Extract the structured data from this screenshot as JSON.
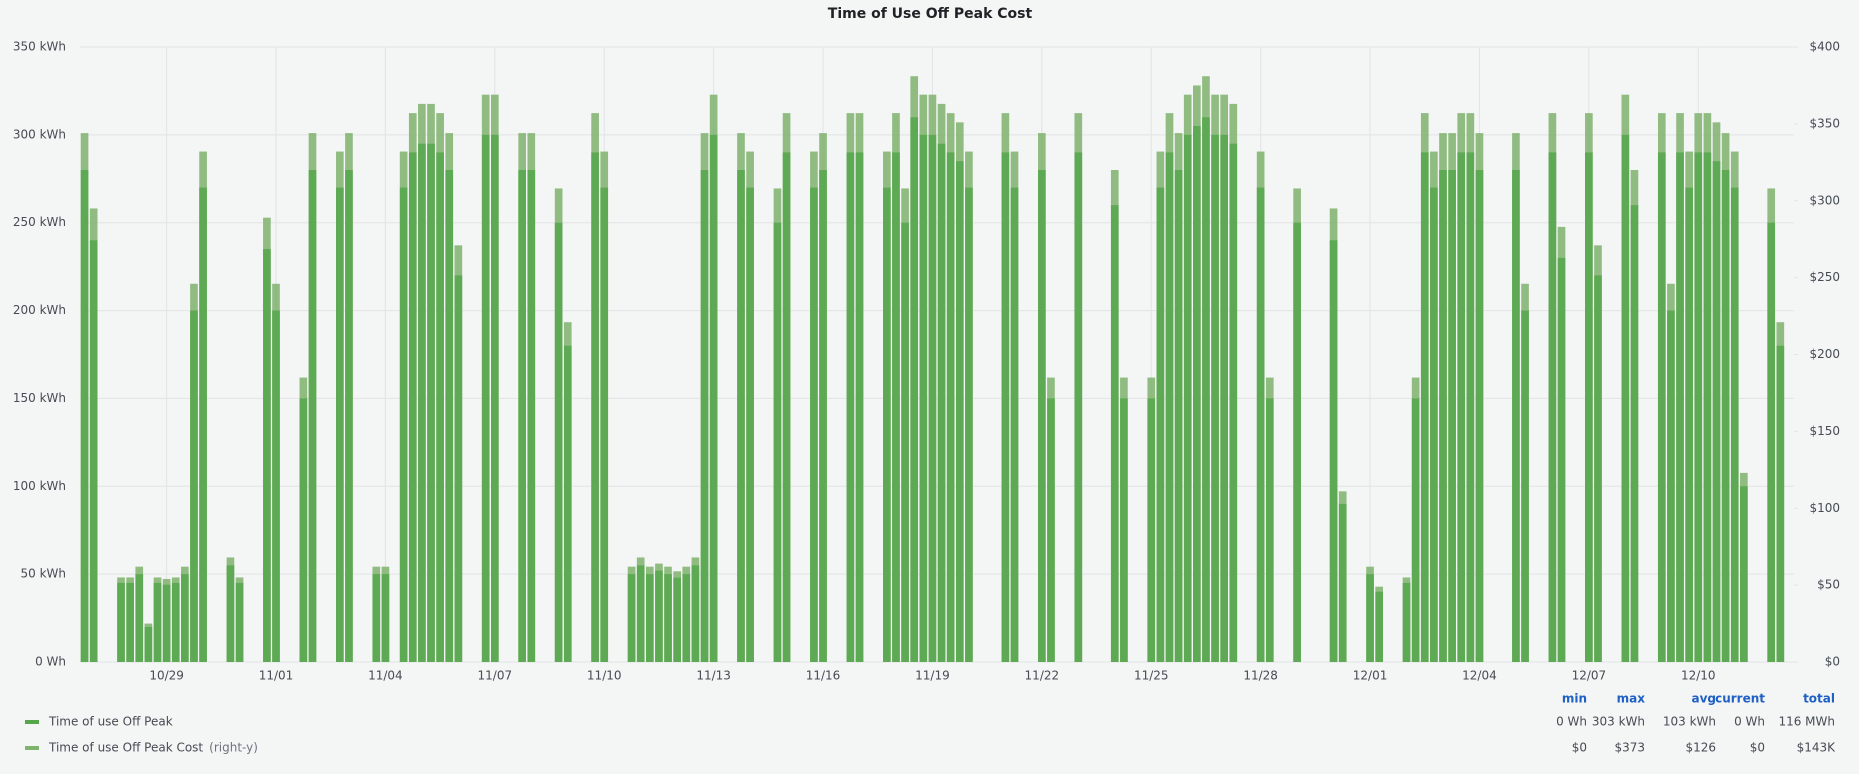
{
  "chart_data": {
    "type": "bar",
    "title": "Time of Use Off Peak Cost",
    "categories": [
      null,
      null,
      null,
      null,
      null,
      null,
      null,
      null,
      null,
      "10/29",
      null,
      null,
      null,
      null,
      null,
      null,
      null,
      null,
      null,
      null,
      null,
      "11/01",
      null,
      null,
      null,
      null,
      null,
      null,
      null,
      null,
      null,
      null,
      null,
      "11/04",
      null,
      null,
      null,
      null,
      null,
      null,
      null,
      null,
      null,
      null,
      null,
      "11/07",
      null,
      null,
      null,
      null,
      null,
      null,
      null,
      null,
      null,
      null,
      null,
      "11/10",
      null,
      null,
      null,
      null,
      null,
      null,
      null,
      null,
      null,
      null,
      null,
      "11/13",
      null,
      null,
      null,
      null,
      null,
      null,
      null,
      null,
      null,
      null,
      null,
      "11/16",
      null,
      null,
      null,
      null,
      null,
      null,
      null,
      null,
      null,
      null,
      null,
      "11/19",
      null,
      null,
      null,
      null,
      null,
      null,
      null,
      null,
      null,
      null,
      null,
      "11/22",
      null,
      null,
      null,
      null,
      null,
      null,
      null,
      null,
      null,
      null,
      null,
      "11/25",
      null,
      null,
      null,
      null,
      null,
      null,
      null,
      null,
      null,
      null,
      null,
      "11/28",
      null,
      null,
      null,
      null,
      null,
      null,
      null,
      null,
      null,
      null,
      null,
      "12/01",
      null,
      null,
      null,
      null,
      null,
      null,
      null,
      null,
      null,
      null,
      null,
      "12/04",
      null,
      null,
      null,
      null,
      null,
      null,
      null,
      null,
      null,
      null,
      null,
      "12/07",
      null,
      null,
      null,
      null,
      null,
      null,
      null,
      null,
      null,
      null,
      null,
      "12/10",
      null,
      null,
      null,
      null,
      null,
      null,
      null,
      null,
      null,
      null
    ],
    "series": [
      {
        "name": "Time of use Off Peak",
        "color": "#56a64b",
        "axis": "y",
        "values": [
          280,
          240,
          0,
          0,
          45,
          45,
          50,
          20,
          45,
          44,
          45,
          50,
          200,
          270,
          0,
          0,
          55,
          45,
          0,
          0,
          235,
          200,
          0,
          0,
          150,
          280,
          0,
          0,
          270,
          280,
          0,
          0,
          50,
          50,
          0,
          270,
          290,
          295,
          295,
          290,
          280,
          220,
          0,
          0,
          300,
          300,
          0,
          0,
          280,
          280,
          0,
          0,
          250,
          180,
          0,
          0,
          290,
          270,
          0,
          0,
          50,
          55,
          50,
          52,
          50,
          48,
          50,
          55,
          280,
          300,
          0,
          0,
          280,
          270,
          0,
          0,
          250,
          290,
          0,
          0,
          270,
          280,
          0,
          0,
          290,
          290,
          0,
          0,
          270,
          290,
          250,
          310,
          300,
          300,
          295,
          290,
          285,
          270,
          0,
          0,
          0,
          290,
          270,
          0,
          0,
          280,
          150,
          0,
          0,
          290,
          0,
          0,
          0,
          260,
          150,
          0,
          0,
          150,
          270,
          290,
          280,
          300,
          305,
          310,
          300,
          300,
          295,
          0,
          0,
          270,
          150,
          0,
          0,
          250,
          0,
          0,
          0,
          240,
          90,
          0,
          0,
          50,
          40,
          0,
          0,
          45,
          150,
          290,
          270,
          280,
          280,
          290,
          290,
          280,
          0,
          0,
          0,
          280,
          200,
          0,
          0,
          290,
          230,
          0,
          0,
          290,
          220,
          0,
          0,
          300,
          260,
          0,
          0,
          290,
          200,
          290,
          270,
          290,
          290,
          285,
          280,
          270,
          100,
          0,
          0,
          250,
          180,
          0
        ]
      },
      {
        "name": "Time of use Off Peak Cost",
        "axis_note": "(right-y)",
        "color": "#7eb26d",
        "axis": "y2",
        "values": [
          344,
          295,
          0,
          0,
          55,
          55,
          62,
          25,
          55,
          54,
          55,
          62,
          246,
          332,
          0,
          0,
          68,
          55,
          0,
          0,
          289,
          246,
          0,
          0,
          185,
          344,
          0,
          0,
          332,
          344,
          0,
          0,
          62,
          62,
          0,
          332,
          357,
          363,
          363,
          357,
          344,
          271,
          0,
          0,
          369,
          369,
          0,
          0,
          344,
          344,
          0,
          0,
          308,
          221,
          0,
          0,
          357,
          332,
          0,
          0,
          62,
          68,
          62,
          64,
          62,
          59,
          62,
          68,
          344,
          369,
          0,
          0,
          344,
          332,
          0,
          0,
          308,
          357,
          0,
          0,
          332,
          344,
          0,
          0,
          357,
          357,
          0,
          0,
          332,
          357,
          308,
          381,
          369,
          369,
          363,
          357,
          351,
          332,
          0,
          0,
          0,
          357,
          332,
          0,
          0,
          344,
          185,
          0,
          0,
          357,
          0,
          0,
          0,
          320,
          185,
          0,
          0,
          185,
          332,
          357,
          344,
          369,
          375,
          381,
          369,
          369,
          363,
          0,
          0,
          332,
          185,
          0,
          0,
          308,
          0,
          0,
          0,
          295,
          111,
          0,
          0,
          62,
          49,
          0,
          0,
          55,
          185,
          357,
          332,
          344,
          344,
          357,
          357,
          344,
          0,
          0,
          0,
          344,
          246,
          0,
          0,
          357,
          283,
          0,
          0,
          357,
          271,
          0,
          0,
          369,
          320,
          0,
          0,
          357,
          246,
          357,
          332,
          357,
          357,
          351,
          344,
          332,
          123,
          0,
          0,
          308,
          221,
          0
        ]
      }
    ],
    "ylim": [
      0,
      350
    ],
    "yticks": [
      {
        "value": 0,
        "label": "0 Wh"
      },
      {
        "value": 50,
        "label": "50 kWh"
      },
      {
        "value": 100,
        "label": "100 kWh"
      },
      {
        "value": 150,
        "label": "150 kWh"
      },
      {
        "value": 200,
        "label": "200 kWh"
      },
      {
        "value": 250,
        "label": "250 kWh"
      },
      {
        "value": 300,
        "label": "300 kWh"
      },
      {
        "value": 350,
        "label": "350 kWh"
      }
    ],
    "y2lim": [
      0,
      400
    ],
    "y2ticks": [
      {
        "value": 0,
        "label": "$0"
      },
      {
        "value": 50,
        "label": "$50"
      },
      {
        "value": 100,
        "label": "$100"
      },
      {
        "value": 150,
        "label": "$150"
      },
      {
        "value": 200,
        "label": "$200"
      },
      {
        "value": 250,
        "label": "$250"
      },
      {
        "value": 300,
        "label": "$300"
      },
      {
        "value": 350,
        "label": "$350"
      },
      {
        "value": 400,
        "label": "$400"
      }
    ],
    "grid": true,
    "legend_table": {
      "headers": [
        "min",
        "max",
        "avg",
        "current",
        "total"
      ],
      "rows": [
        [
          "0 Wh",
          "303 kWh",
          "103 kWh",
          "0 Wh",
          "116 MWh"
        ],
        [
          "$0",
          "$373",
          "$126",
          "$0",
          "$143K"
        ]
      ]
    }
  }
}
